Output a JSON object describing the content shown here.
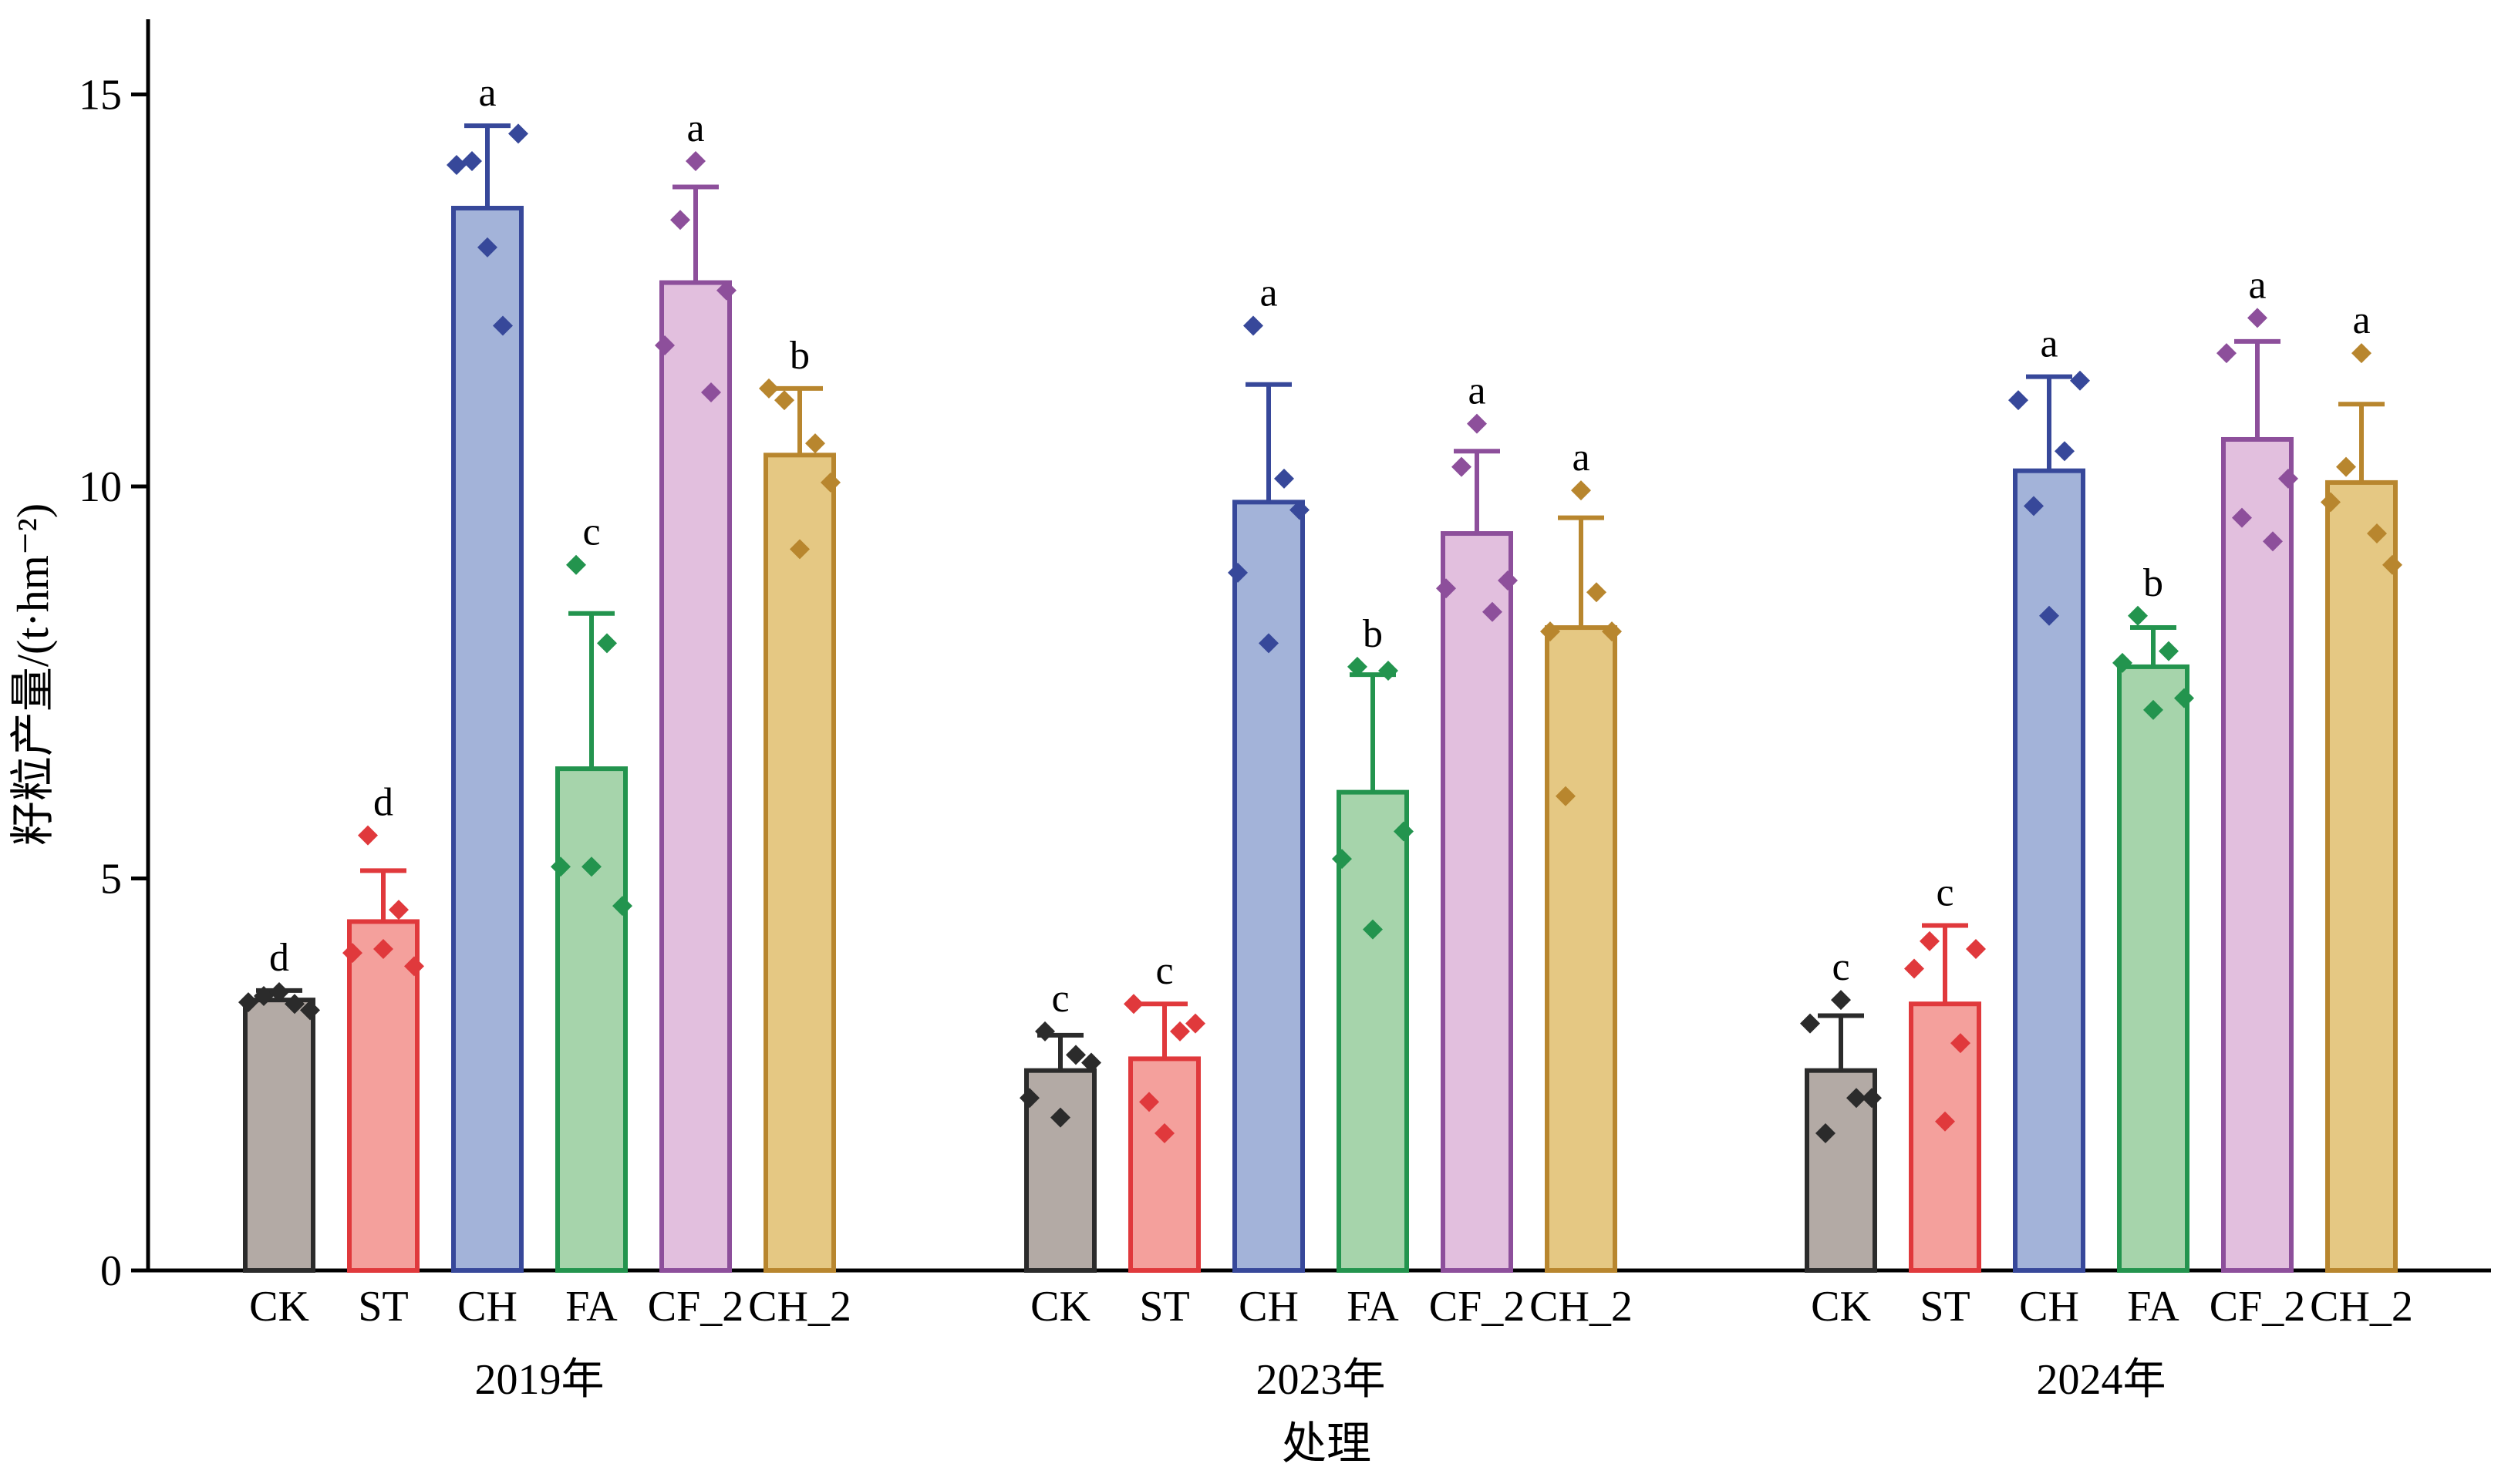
{
  "chart_data": {
    "type": "bar",
    "xlabel": "处理",
    "ylabel": "籽粒产量/(t·hm⁻²)",
    "ylim": [
      0,
      16
    ],
    "yticks": [
      0,
      5,
      10,
      15
    ],
    "grid": false,
    "categories": [
      "CK",
      "ST",
      "CH",
      "FA",
      "CF_2",
      "CH_2"
    ],
    "colors": {
      "CK": {
        "fill": "#b3aaa5",
        "stroke": "#2b2b2b",
        "point": "#2b2b2b"
      },
      "ST": {
        "fill": "#f4a09c",
        "stroke": "#e0393c",
        "point": "#e0393c"
      },
      "CH": {
        "fill": "#a3b3d9",
        "stroke": "#37489a",
        "point": "#37489a"
      },
      "FA": {
        "fill": "#a6d4ab",
        "stroke": "#23944e",
        "point": "#23944e"
      },
      "CF_2": {
        "fill": "#e2bfde",
        "stroke": "#8d4f9b",
        "point": "#8d4f9b"
      },
      "CH_2": {
        "fill": "#e5c883",
        "stroke": "#b8862e",
        "point": "#b8862e"
      }
    },
    "groups": [
      {
        "label": "2019年",
        "bars": [
          {
            "category": "CK",
            "value": 3.45,
            "error": 0.12,
            "letter": "d",
            "points": [
              3.42,
              3.5,
              3.55,
              3.4,
              3.32
            ]
          },
          {
            "category": "ST",
            "value": 4.45,
            "error": 0.65,
            "letter": "d",
            "points": [
              4.05,
              5.55,
              4.1,
              4.6,
              3.88
            ]
          },
          {
            "category": "CH",
            "value": 13.55,
            "error": 1.05,
            "letter": "a",
            "points": [
              14.1,
              14.15,
              13.05,
              12.05,
              14.5
            ]
          },
          {
            "category": "FA",
            "value": 6.4,
            "error": 1.98,
            "letter": "c",
            "points": [
              5.15,
              9.0,
              5.15,
              8.0,
              4.65
            ]
          },
          {
            "category": "CF_2",
            "value": 12.6,
            "error": 1.22,
            "letter": "a",
            "points": [
              11.8,
              13.4,
              14.15,
              11.2,
              12.5
            ]
          },
          {
            "category": "CH_2",
            "value": 10.4,
            "error": 0.85,
            "letter": "b",
            "points": [
              11.25,
              11.1,
              9.2,
              10.55,
              10.05
            ]
          }
        ]
      },
      {
        "label": "2023年",
        "bars": [
          {
            "category": "CK",
            "value": 2.55,
            "error": 0.45,
            "letter": "c",
            "points": [
              2.2,
              3.05,
              1.95,
              2.75,
              2.65
            ]
          },
          {
            "category": "ST",
            "value": 2.7,
            "error": 0.7,
            "letter": "c",
            "points": [
              3.4,
              2.15,
              1.75,
              3.05,
              3.15
            ]
          },
          {
            "category": "CH",
            "value": 9.8,
            "error": 1.5,
            "letter": "a",
            "points": [
              8.9,
              12.05,
              8.0,
              10.1,
              9.7
            ]
          },
          {
            "category": "FA",
            "value": 6.1,
            "error": 1.5,
            "letter": "b",
            "points": [
              5.25,
              7.7,
              4.35,
              7.65,
              5.6
            ]
          },
          {
            "category": "CF_2",
            "value": 9.4,
            "error": 1.05,
            "letter": "a",
            "points": [
              8.7,
              10.25,
              10.8,
              8.4,
              8.8
            ]
          },
          {
            "category": "CH_2",
            "value": 8.2,
            "error": 1.4,
            "letter": "a",
            "points": [
              8.15,
              6.05,
              9.95,
              8.65,
              8.15
            ]
          }
        ]
      },
      {
        "label": "2024年",
        "bars": [
          {
            "category": "CK",
            "value": 2.55,
            "error": 0.7,
            "letter": "c",
            "points": [
              3.15,
              1.75,
              3.45,
              2.2,
              2.2
            ]
          },
          {
            "category": "ST",
            "value": 3.4,
            "error": 1.0,
            "letter": "c",
            "points": [
              3.85,
              4.2,
              1.9,
              2.9,
              4.1
            ]
          },
          {
            "category": "CH",
            "value": 10.2,
            "error": 1.2,
            "letter": "a",
            "points": [
              11.1,
              9.75,
              8.35,
              10.45,
              11.35
            ]
          },
          {
            "category": "FA",
            "value": 7.7,
            "error": 0.5,
            "letter": "b",
            "points": [
              7.75,
              8.35,
              7.15,
              7.9,
              7.3
            ]
          },
          {
            "category": "CF_2",
            "value": 10.6,
            "error": 1.25,
            "letter": "a",
            "points": [
              11.7,
              9.6,
              12.15,
              9.3,
              10.1
            ]
          },
          {
            "category": "CH_2",
            "value": 10.05,
            "error": 1.0,
            "letter": "a",
            "points": [
              9.8,
              10.25,
              11.7,
              9.4,
              9.0
            ]
          }
        ]
      }
    ]
  }
}
